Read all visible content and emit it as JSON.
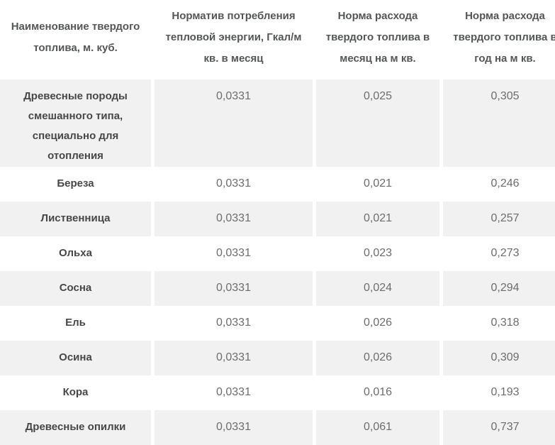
{
  "colors": {
    "row_stripe": "#f1f1f1",
    "header_text": "#555657",
    "name_text": "#474747",
    "value_text": "#6d6d6d",
    "background": "#ffffff"
  },
  "chart_data": {
    "type": "table",
    "columns": [
      "Наименование твердого топлива, м. куб.",
      "Норматив потребления тепловой энергии, Гкал/м кв. в месяц",
      "Норма расхода твердого топлива в месяц на м кв.",
      "Норма расхода твердого топлива в год на м кв."
    ],
    "rows": [
      {
        "fuel": "Древесные породы смешанного типа, специально для отопления",
        "heat_norm": "0,0331",
        "month_rate": "0,025",
        "year_rate": "0,305"
      },
      {
        "fuel": "Береза",
        "heat_norm": "0,0331",
        "month_rate": "0,021",
        "year_rate": "0,246"
      },
      {
        "fuel": "Лиственница",
        "heat_norm": "0,0331",
        "month_rate": "0,021",
        "year_rate": "0,257"
      },
      {
        "fuel": "Ольха",
        "heat_norm": "0,0331",
        "month_rate": "0,023",
        "year_rate": "0,273"
      },
      {
        "fuel": "Сосна",
        "heat_norm": "0,0331",
        "month_rate": "0,024",
        "year_rate": "0,294"
      },
      {
        "fuel": "Ель",
        "heat_norm": "0,0331",
        "month_rate": "0,026",
        "year_rate": "0,318"
      },
      {
        "fuel": "Осина",
        "heat_norm": "0,0331",
        "month_rate": "0,026",
        "year_rate": "0,309"
      },
      {
        "fuel": "Кора",
        "heat_norm": "0,0331",
        "month_rate": "0,016",
        "year_rate": "0,193"
      },
      {
        "fuel": "Древесные опилки",
        "heat_norm": "0,0331",
        "month_rate": "0,061",
        "year_rate": "0,737"
      }
    ]
  }
}
